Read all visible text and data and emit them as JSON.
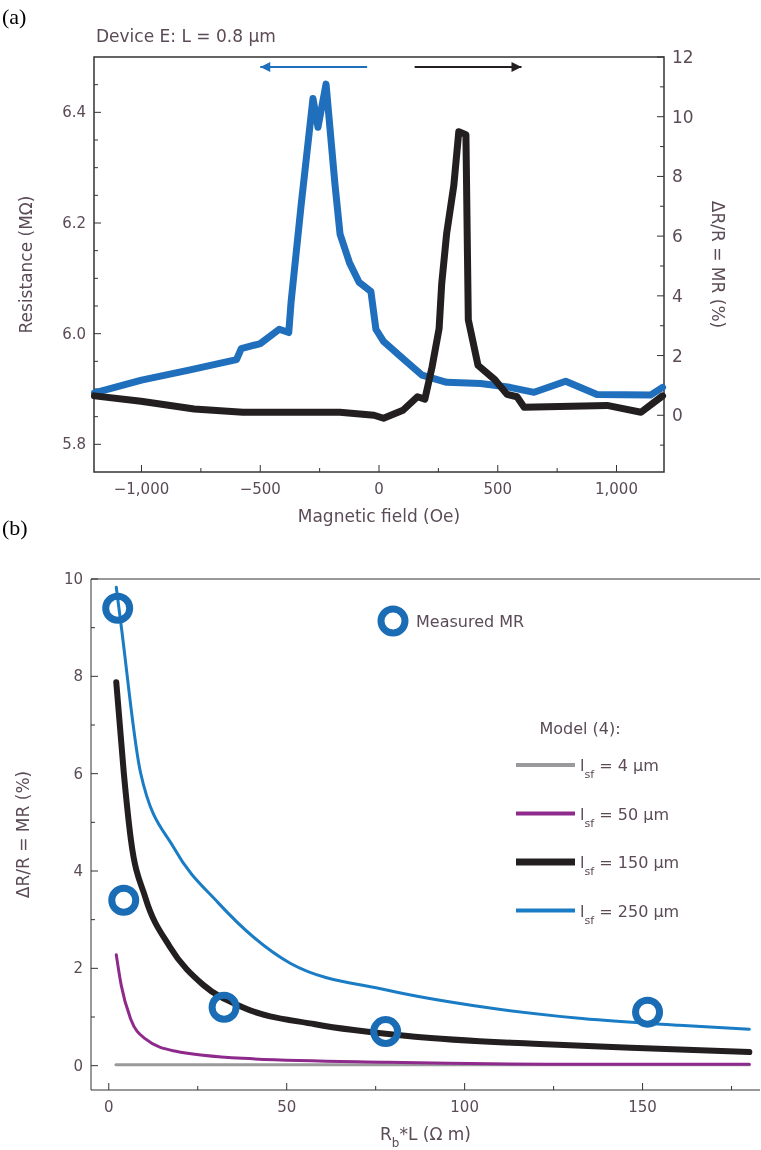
{
  "chart_data": [
    {
      "type": "line",
      "title": "Device E: L = 0.8 µm",
      "xlabel": "Magnetic field (Oe)",
      "ylabel": "Resistance (MΩ)",
      "y2label": "ΔR/R = MR (%)",
      "annotations": [
        "(a)"
      ],
      "xlim": [
        -1200,
        1200
      ],
      "xticks": [
        {
          "value": -1000,
          "label": "−1,000"
        },
        {
          "value": -750,
          "label": null
        },
        {
          "value": -500,
          "label": "−500"
        },
        {
          "value": -250,
          "label": null
        },
        0,
        {
          "value": 250,
          "label": null
        },
        500,
        {
          "value": 750,
          "label": null
        },
        {
          "value": 1000,
          "label": "1,000"
        }
      ],
      "ylim": [
        5.75,
        6.5
      ],
      "yticks": [
        5.8,
        {
          "value": 5.85,
          "label": null
        },
        {
          "value": 5.9,
          "label": null
        },
        {
          "value": 5.95,
          "label": null
        },
        {
          "value": 6,
          "label": "6.0"
        },
        {
          "value": 6.05,
          "label": null
        },
        {
          "value": 6.1,
          "label": null
        },
        {
          "value": 6.15,
          "label": null
        },
        6.2,
        {
          "value": 6.25,
          "label": null
        },
        {
          "value": 6.3,
          "label": null
        },
        {
          "value": 6.35,
          "label": null
        },
        6.4,
        {
          "value": 6.45,
          "label": null
        }
      ],
      "y2lim": [
        -1.9,
        12
      ],
      "y2ticks": [
        {
          "value": -1,
          "label": null
        },
        0,
        {
          "value": 1,
          "label": null
        },
        2,
        {
          "value": 3,
          "label": null
        },
        4,
        {
          "value": 5,
          "label": null
        },
        6,
        {
          "value": 7,
          "label": null
        },
        8,
        {
          "value": 9,
          "label": null
        },
        10,
        {
          "value": 11,
          "label": null
        },
        12
      ],
      "series": [
        {
          "color": "#1f6fbd",
          "x": [
            -1198,
            -1000,
            -800,
            -600,
            -580,
            -500,
            -420,
            -380,
            -370,
            -328,
            -278,
            -257,
            -223,
            -185,
            -164,
            -124,
            -84,
            -34,
            -13,
            19,
            101,
            181,
            285,
            428,
            551,
            653,
            786,
            918,
            1143,
            1194
          ],
          "values": [
            5.893,
            5.916,
            5.934,
            5.953,
            5.973,
            5.982,
            6.008,
            6.002,
            6.058,
            6.232,
            6.425,
            6.373,
            6.451,
            6.268,
            6.18,
            6.128,
            6.093,
            6.076,
            6.008,
            5.986,
            5.955,
            5.925,
            5.912,
            5.91,
            5.903,
            5.894,
            5.914,
            5.89,
            5.889,
            5.903
          ]
        },
        {
          "color": "#231f20",
          "axis": "y2",
          "x": [
            -1198,
            -1002,
            -778,
            -573,
            -165,
            -21,
            19,
            101,
            162,
            193,
            223,
            253,
            264,
            285,
            315,
            336,
            366,
            376,
            417,
            488,
            539,
            581,
            611,
            960,
            1103,
            1194
          ],
          "values": [
            0.65,
            0.47,
            0.21,
            0.1,
            0.1,
            0,
            -0.1,
            0.17,
            0.62,
            0.54,
            1.6,
            2.9,
            4.4,
            6.1,
            7.7,
            9.5,
            9.4,
            3.2,
            1.67,
            1.19,
            0.7,
            0.62,
            0.27,
            0.33,
            0.1,
            0.65
          ]
        }
      ]
    },
    {
      "type": "line",
      "xlabel": "R$_{b}$*L (Ω m)",
      "ylabel": "ΔR/R = MR (%)",
      "legend_title": "Model (4):",
      "legend": "top right",
      "annotations": [
        "(b)"
      ],
      "xlim": [
        -5,
        183
      ],
      "xticks": [
        0,
        {
          "value": 25,
          "label": null
        },
        50,
        {
          "value": 75,
          "label": null
        },
        100,
        {
          "value": 125,
          "label": null
        },
        150,
        {
          "value": 175,
          "label": null
        }
      ],
      "ylim": [
        -0.5,
        10
      ],
      "yticks": [
        0,
        {
          "value": 1,
          "label": null
        },
        2,
        {
          "value": 3,
          "label": null
        },
        4,
        {
          "value": 5,
          "label": null
        },
        6,
        {
          "value": 7,
          "label": null
        },
        8,
        {
          "value": 9,
          "label": null
        },
        10
      ],
      "series": [
        {
          "name": "Measured MR",
          "type": "scatter",
          "marker": "circle",
          "color": "#1a6db5",
          "x": [
            2.5,
            4.2,
            32.4,
            77.8,
            151.4
          ],
          "values": [
            9.4,
            3.4,
            1.2,
            0.7,
            1.1
          ]
        },
        {
          "name": "l$_{sf}$ = 4 µm",
          "color": "#9a9a9c",
          "x": [
            2,
            180
          ],
          "values": [
            0.02,
            0.02
          ]
        },
        {
          "name": "l$_{sf}$ = 50 µm",
          "color": "#8e2a8c",
          "x": [
            2.1,
            3.5,
            6.2,
            10.3,
            18.5,
            37.6,
            78.4,
            133,
            180
          ],
          "values": [
            2.28,
            1.65,
            0.95,
            0.55,
            0.3,
            0.15,
            0.07,
            0.03,
            0.03
          ]
        },
        {
          "name": "l$_{sf}$ = 150 µm",
          "color": "#231f20",
          "x": [
            2.1,
            4.2,
            6.2,
            10.3,
            17.1,
            26.7,
            37.6,
            58,
            85.3,
            119.4,
            146.7,
            180
          ],
          "values": [
            7.88,
            6.03,
            4.65,
            3.45,
            2.45,
            1.65,
            1.2,
            0.85,
            0.6,
            0.45,
            0.37,
            0.28
          ]
        },
        {
          "name": "l$_{sf}$ = 250 µm",
          "color": "#1a7cc4",
          "x": [
            2.1,
            3.5,
            8.9,
            18.5,
            30.7,
            51.1,
            78.4,
            105.7,
            133,
            160.3,
            180
          ],
          "values": [
            9.83,
            9.03,
            6.03,
            4.45,
            3.35,
            2.1,
            1.55,
            1.2,
            0.97,
            0.83,
            0.75
          ]
        }
      ]
    }
  ]
}
